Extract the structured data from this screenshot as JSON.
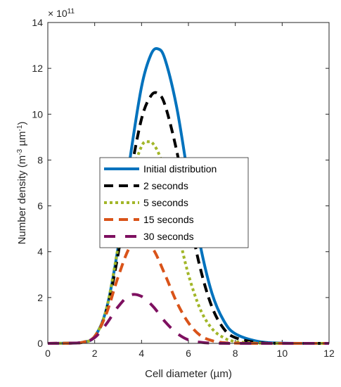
{
  "chart_data": {
    "type": "line",
    "title": "",
    "xlabel": "Cell diameter (µm)",
    "ylabel_main": "Number density (m",
    "ylabel_sup1": "-3",
    "ylabel_mid": " µm",
    "ylabel_sup2": "-1",
    "ylabel_end": ")",
    "y_exponent_base": "× 10",
    "y_exponent_power": "11",
    "xlim": [
      0,
      12
    ],
    "ylim": [
      0,
      14
    ],
    "xticks": [
      0,
      2,
      4,
      6,
      8,
      10,
      12
    ],
    "yticks": [
      0,
      2,
      4,
      6,
      8,
      10,
      12,
      14
    ],
    "grid": false,
    "legend_position": "center",
    "series": [
      {
        "name": "Initial distribution",
        "color": "#0072BD",
        "style": "solid",
        "x": [
          0,
          1,
          1.5,
          2,
          2.5,
          3,
          3.5,
          4,
          4.4,
          4.7,
          5,
          5.5,
          6,
          6.5,
          7,
          7.5,
          8,
          9,
          10,
          11,
          12
        ],
        "y": [
          0,
          0.01,
          0.05,
          0.3,
          1.5,
          4.2,
          8.0,
          11.2,
          12.6,
          12.85,
          12.4,
          10.3,
          7.2,
          4.3,
          2.2,
          1.0,
          0.42,
          0.08,
          0.01,
          0,
          0
        ]
      },
      {
        "name": "2 seconds",
        "color": "#000000",
        "style": "dashed",
        "x": [
          0,
          1,
          1.5,
          2,
          2.5,
          3,
          3.5,
          4,
          4.4,
          4.7,
          5,
          5.5,
          6,
          6.5,
          7,
          7.5,
          8,
          9,
          10,
          11,
          12
        ],
        "y": [
          0,
          0.01,
          0.05,
          0.3,
          1.4,
          3.9,
          7.2,
          9.8,
          10.8,
          10.9,
          10.4,
          8.4,
          5.7,
          3.3,
          1.6,
          0.65,
          0.25,
          0.03,
          0,
          0,
          0
        ]
      },
      {
        "name": "5 seconds",
        "color": "#A2B628",
        "style": "dotted",
        "x": [
          0,
          1,
          1.5,
          2,
          2.5,
          3,
          3.5,
          4,
          4.3,
          4.5,
          4.8,
          5.2,
          5.6,
          6,
          6.5,
          7,
          7.5,
          8,
          9,
          10,
          12
        ],
        "y": [
          0,
          0.01,
          0.05,
          0.3,
          1.5,
          4.2,
          7.0,
          8.6,
          8.8,
          8.7,
          8.1,
          6.6,
          4.7,
          3.0,
          1.5,
          0.65,
          0.25,
          0.08,
          0.01,
          0,
          0
        ]
      },
      {
        "name": "15 seconds",
        "color": "#D95319",
        "style": "dashed",
        "x": [
          0,
          1,
          1.5,
          2,
          2.5,
          3,
          3.5,
          4,
          4.5,
          5,
          5.5,
          6,
          6.5,
          7,
          7.5,
          8,
          9,
          12
        ],
        "y": [
          0,
          0.01,
          0.05,
          0.3,
          1.3,
          2.9,
          4.2,
          4.55,
          4.1,
          3.0,
          1.8,
          0.9,
          0.35,
          0.12,
          0.03,
          0.01,
          0,
          0
        ]
      },
      {
        "name": "30 seconds",
        "color": "#7E1060",
        "style": "longdash",
        "x": [
          0,
          1,
          1.5,
          2,
          2.5,
          3,
          3.5,
          4,
          4.5,
          5,
          5.5,
          6,
          6.5,
          7,
          8,
          12
        ],
        "y": [
          0,
          0.01,
          0.05,
          0.25,
          0.85,
          1.6,
          2.1,
          2.05,
          1.6,
          0.95,
          0.45,
          0.15,
          0.05,
          0.01,
          0,
          0
        ]
      }
    ]
  }
}
